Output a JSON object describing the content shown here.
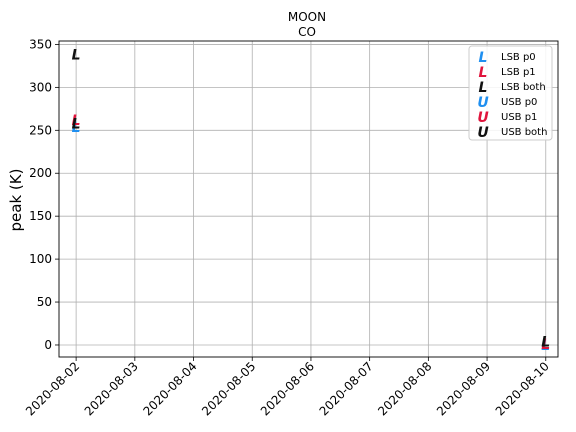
{
  "chart_data": {
    "type": "scatter",
    "title": "MOON",
    "subtitle": "CO",
    "xlabel": "",
    "ylabel": "peak (K)",
    "x_ticks": [
      "2020-08-02",
      "2020-08-03",
      "2020-08-04",
      "2020-08-05",
      "2020-08-06",
      "2020-08-07",
      "2020-08-08",
      "2020-08-09",
      "2020-08-10"
    ],
    "xlim": [
      "2020-08-01T17:00",
      "2020-08-10T05:00"
    ],
    "ylim": [
      -14,
      354
    ],
    "y_ticks": [
      0,
      50,
      100,
      150,
      200,
      250,
      300,
      350
    ],
    "grid": true,
    "legend_position": "top-right",
    "series": [
      {
        "name": "LSB p0",
        "marker": "L",
        "color": "#1f8ff0",
        "points": [
          {
            "x": "2020-08-02",
            "y": 254
          },
          {
            "x": "2020-08-10",
            "y": 0
          }
        ]
      },
      {
        "name": "LSB p1",
        "marker": "L",
        "color": "#e0143c",
        "points": [
          {
            "x": "2020-08-02",
            "y": 262
          },
          {
            "x": "2020-08-10",
            "y": 1
          }
        ]
      },
      {
        "name": "LSB both",
        "marker": "L",
        "color": "#111111",
        "points": [
          {
            "x": "2020-08-02",
            "y": 258
          },
          {
            "x": "2020-08-02",
            "y": 338
          },
          {
            "x": "2020-08-10",
            "y": 4
          }
        ]
      },
      {
        "name": "USB p0",
        "marker": "U",
        "color": "#1f8ff0",
        "points": []
      },
      {
        "name": "USB p1",
        "marker": "U",
        "color": "#e0143c",
        "points": []
      },
      {
        "name": "USB both",
        "marker": "U",
        "color": "#111111",
        "points": []
      }
    ]
  }
}
